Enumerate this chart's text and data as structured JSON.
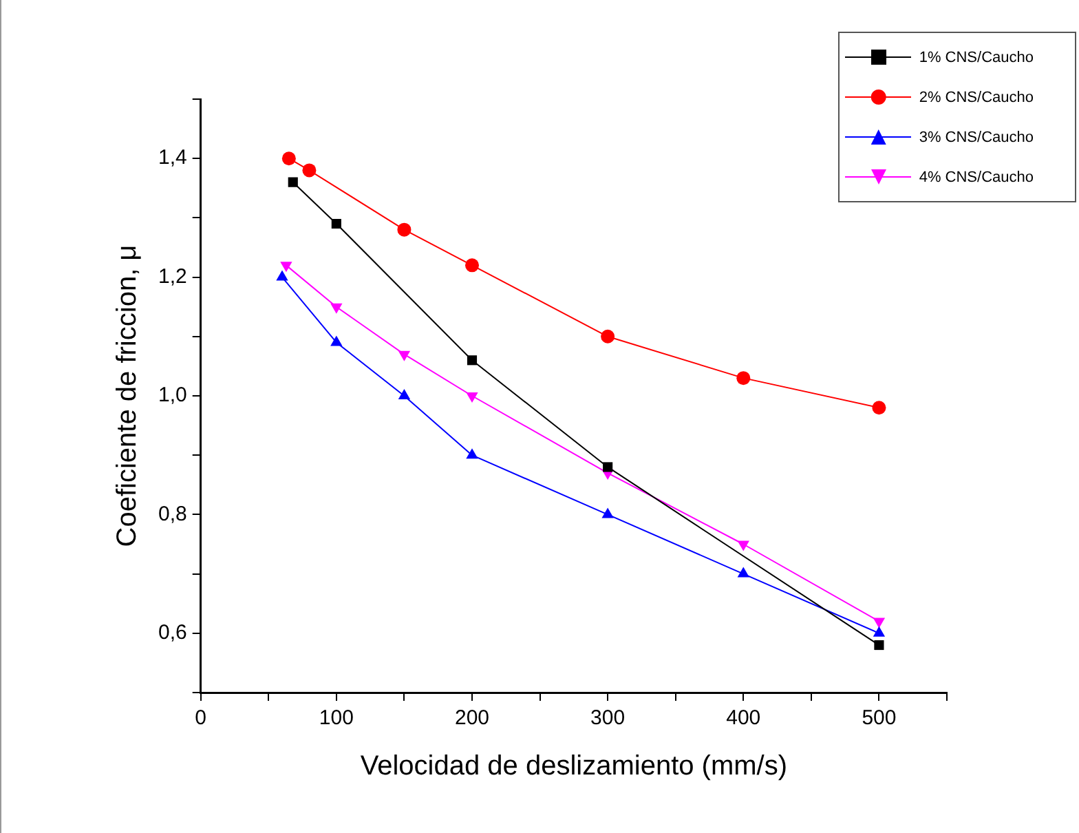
{
  "chart_data": {
    "type": "line",
    "xlabel": "Velocidad de deslizamiento (mm/s)",
    "ylabel": "Coeficiente de friccion, μ",
    "xlim": [
      0,
      550
    ],
    "ylim": [
      0.5,
      1.5
    ],
    "xticks": [
      0,
      {
        "value": 50,
        "label": null
      },
      100,
      {
        "value": 150,
        "label": null
      },
      200,
      {
        "value": 250,
        "label": null
      },
      300,
      {
        "value": 350,
        "label": null
      },
      400,
      {
        "value": 450,
        "label": null
      },
      500,
      {
        "value": 550,
        "label": null
      }
    ],
    "yticks": [
      {
        "value": 0.5,
        "label": null
      },
      {
        "value": 0.6,
        "label": "0,6"
      },
      {
        "value": 0.7,
        "label": null
      },
      {
        "value": 0.8,
        "label": "0,8"
      },
      {
        "value": 0.9,
        "label": null
      },
      {
        "value": 1.0,
        "label": "1,0"
      },
      {
        "value": 1.1,
        "label": null
      },
      {
        "value": 1.2,
        "label": "1,2"
      },
      {
        "value": 1.3,
        "label": null
      },
      {
        "value": 1.4,
        "label": "1,4"
      },
      {
        "value": 1.5,
        "label": null
      }
    ],
    "grid": false,
    "legend": "top right",
    "line_style": "solid",
    "series": [
      {
        "name": "1% CNS/Caucho",
        "color": "#000000",
        "marker": "square",
        "x": [
          68,
          100,
          200,
          300,
          500
        ],
        "values": [
          1.36,
          1.29,
          1.06,
          0.88,
          0.58
        ]
      },
      {
        "name": "2% CNS/Caucho",
        "color": "#ff0000",
        "marker": "circle",
        "x": [
          65,
          80,
          150,
          200,
          300,
          400,
          500
        ],
        "values": [
          1.4,
          1.38,
          1.28,
          1.22,
          1.1,
          1.03,
          0.98
        ]
      },
      {
        "name": "3% CNS/Caucho",
        "color": "#0000ff",
        "marker": "triangle",
        "x": [
          60,
          100,
          150,
          200,
          300,
          400,
          500
        ],
        "values": [
          1.2,
          1.09,
          1.0,
          0.9,
          0.8,
          0.7,
          0.6
        ]
      },
      {
        "name": "4% CNS/Caucho",
        "color": "#ff00ff",
        "marker": "triangle-down",
        "x": [
          63,
          100,
          150,
          200,
          300,
          400,
          500
        ],
        "values": [
          1.22,
          1.15,
          1.07,
          1.0,
          0.87,
          0.75,
          0.62
        ]
      }
    ]
  }
}
